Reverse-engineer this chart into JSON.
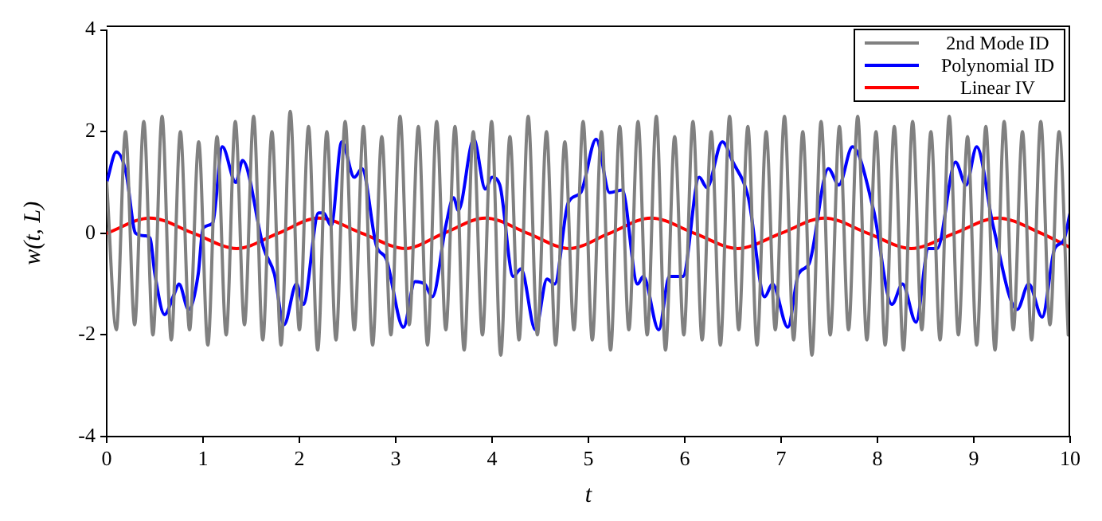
{
  "chart_data": {
    "type": "line",
    "xlabel": "t",
    "ylabel": "w(t, L)",
    "xlim": [
      0,
      10
    ],
    "ylim": [
      -4,
      4
    ],
    "xticks": [
      0,
      1,
      2,
      3,
      4,
      5,
      6,
      7,
      8,
      9,
      10
    ],
    "yticks": [
      -4,
      -2,
      0,
      2,
      4
    ],
    "grid": false,
    "legend": "top right",
    "marker": "none",
    "line_style": "solid",
    "series": [
      {
        "name": "2nd Mode ID",
        "color": "#808080",
        "x": [
          0,
          0.1,
          0.195,
          0.29,
          0.385,
          0.48,
          0.575,
          0.67,
          0.765,
          0.86,
          0.955,
          1.05,
          1.145,
          1.24,
          1.335,
          1.43,
          1.525,
          1.62,
          1.715,
          1.81,
          1.905,
          2.0,
          2.095,
          2.19,
          2.285,
          2.38,
          2.475,
          2.57,
          2.665,
          2.76,
          2.855,
          2.95,
          3.045,
          3.14,
          3.235,
          3.33,
          3.425,
          3.52,
          3.615,
          3.71,
          3.805,
          3.9,
          3.995,
          4.09,
          4.185,
          4.28,
          4.375,
          4.47,
          4.565,
          4.66,
          4.755,
          4.85,
          4.945,
          5.04,
          5.135,
          5.23,
          5.325,
          5.42,
          5.515,
          5.61,
          5.705,
          5.8,
          5.895,
          5.99,
          6.085,
          6.18,
          6.275,
          6.37,
          6.465,
          6.56,
          6.655,
          6.75,
          6.845,
          6.94,
          7.035,
          7.13,
          7.225,
          7.32,
          7.415,
          7.51,
          7.605,
          7.7,
          7.795,
          7.89,
          7.985,
          8.08,
          8.175,
          8.27,
          8.365,
          8.46,
          8.555,
          8.65,
          8.745,
          8.84,
          8.935,
          9.03,
          9.125,
          9.22,
          9.315,
          9.41,
          9.505,
          9.6,
          9.695,
          9.79,
          9.885,
          9.98
        ],
        "values": [
          1.0,
          -1.9,
          2.0,
          -1.8,
          2.2,
          -2.0,
          2.3,
          -2.1,
          2.0,
          -1.9,
          1.8,
          -2.2,
          1.9,
          -2.0,
          2.2,
          -1.8,
          2.3,
          -2.1,
          2.0,
          -2.2,
          2.4,
          -1.9,
          2.1,
          -2.3,
          2.0,
          -2.1,
          2.2,
          -1.9,
          2.1,
          -2.2,
          1.9,
          -2.0,
          2.3,
          -1.8,
          2.1,
          -2.2,
          2.2,
          -1.9,
          2.1,
          -2.3,
          2.0,
          -2.0,
          2.2,
          -2.4,
          1.9,
          -2.1,
          2.3,
          -2.0,
          2.0,
          -2.2,
          1.8,
          -1.9,
          2.2,
          -2.1,
          2.0,
          -2.3,
          2.1,
          -1.9,
          2.2,
          -2.0,
          2.3,
          -2.3,
          1.9,
          -2.0,
          2.2,
          -2.1,
          2.0,
          -2.2,
          2.3,
          -1.9,
          2.1,
          -2.2,
          2.0,
          -1.9,
          2.3,
          -2.1,
          2.0,
          -2.4,
          2.2,
          -2.0,
          2.1,
          -1.9,
          2.3,
          -2.1,
          2.0,
          -2.2,
          2.1,
          -2.3,
          2.2,
          -1.9,
          2.0,
          -2.1,
          2.3,
          -2.0,
          1.9,
          -2.2,
          2.1,
          -2.3,
          2.2,
          -1.9,
          2.0,
          -2.1,
          2.2,
          -1.8,
          2.0,
          -2.0
        ]
      },
      {
        "name": "Polynomial ID",
        "color": "#0000ff",
        "x": [
          0,
          0.1,
          0.2,
          0.3,
          0.4,
          0.45,
          0.5,
          0.6,
          0.7,
          0.75,
          0.85,
          0.95,
          1.0,
          1.1,
          1.2,
          1.34,
          1.41,
          1.63,
          1.74,
          1.84,
          1.97,
          2.04,
          2.2,
          2.25,
          2.33,
          2.44,
          2.57,
          2.65,
          2.8,
          2.9,
          3.08,
          3.2,
          3.3,
          3.38,
          3.52,
          3.6,
          3.65,
          3.81,
          3.93,
          4.0,
          4.08,
          4.22,
          4.3,
          4.45,
          4.57,
          4.65,
          4.79,
          4.92,
          5.08,
          5.22,
          5.35,
          5.51,
          5.57,
          5.73,
          5.84,
          5.98,
          6.15,
          6.23,
          6.39,
          6.5,
          6.66,
          6.83,
          6.91,
          7.07,
          7.18,
          7.29,
          7.49,
          7.6,
          7.74,
          7.96,
          8.15,
          8.26,
          8.4,
          8.53,
          8.62,
          8.81,
          8.92,
          9.03,
          9.2,
          9.45,
          9.57,
          9.71,
          9.84,
          9.93,
          10
        ],
        "values": [
          1.0,
          1.6,
          1.2,
          0.0,
          -0.05,
          -0.1,
          -0.8,
          -1.6,
          -1.2,
          -1.0,
          -1.5,
          -0.8,
          0.1,
          0.2,
          1.7,
          1.0,
          1.43,
          -0.3,
          -0.8,
          -1.8,
          -1.0,
          -1.4,
          0.4,
          0.4,
          0.15,
          1.8,
          1.1,
          1.27,
          -0.25,
          -0.5,
          -1.85,
          -0.95,
          -1.0,
          -1.25,
          0.15,
          0.7,
          0.45,
          1.85,
          0.87,
          1.1,
          0.95,
          -0.85,
          -0.7,
          -1.9,
          -0.9,
          -1.0,
          0.6,
          0.8,
          1.85,
          0.8,
          0.85,
          -1.0,
          -0.85,
          -1.9,
          -0.85,
          -0.85,
          1.1,
          0.9,
          1.8,
          1.4,
          0.7,
          -1.25,
          -1.0,
          -1.85,
          -0.8,
          -0.6,
          1.27,
          0.95,
          1.7,
          0.45,
          -1.4,
          -1.0,
          -1.75,
          -0.3,
          -0.3,
          1.4,
          0.95,
          1.7,
          0.15,
          -1.5,
          -1.0,
          -1.65,
          -0.3,
          -0.15,
          0.4
        ]
      },
      {
        "name": "Linear IV",
        "color": "#ff0000",
        "x": [
          0,
          0.45,
          0.9,
          1.35,
          1.78,
          2.2,
          2.65,
          3.1,
          3.5,
          3.93,
          4.37,
          4.8,
          5.22,
          5.65,
          6.1,
          6.55,
          7.0,
          7.45,
          7.9,
          8.35,
          8.8,
          9.25,
          9.7,
          10
        ],
        "values": [
          0,
          0.3,
          0,
          -0.3,
          0,
          0.3,
          0,
          -0.3,
          0,
          0.3,
          0,
          -0.3,
          0,
          0.3,
          0,
          -0.3,
          0,
          0.3,
          0,
          -0.3,
          0,
          0.3,
          0,
          -0.28
        ]
      }
    ]
  }
}
